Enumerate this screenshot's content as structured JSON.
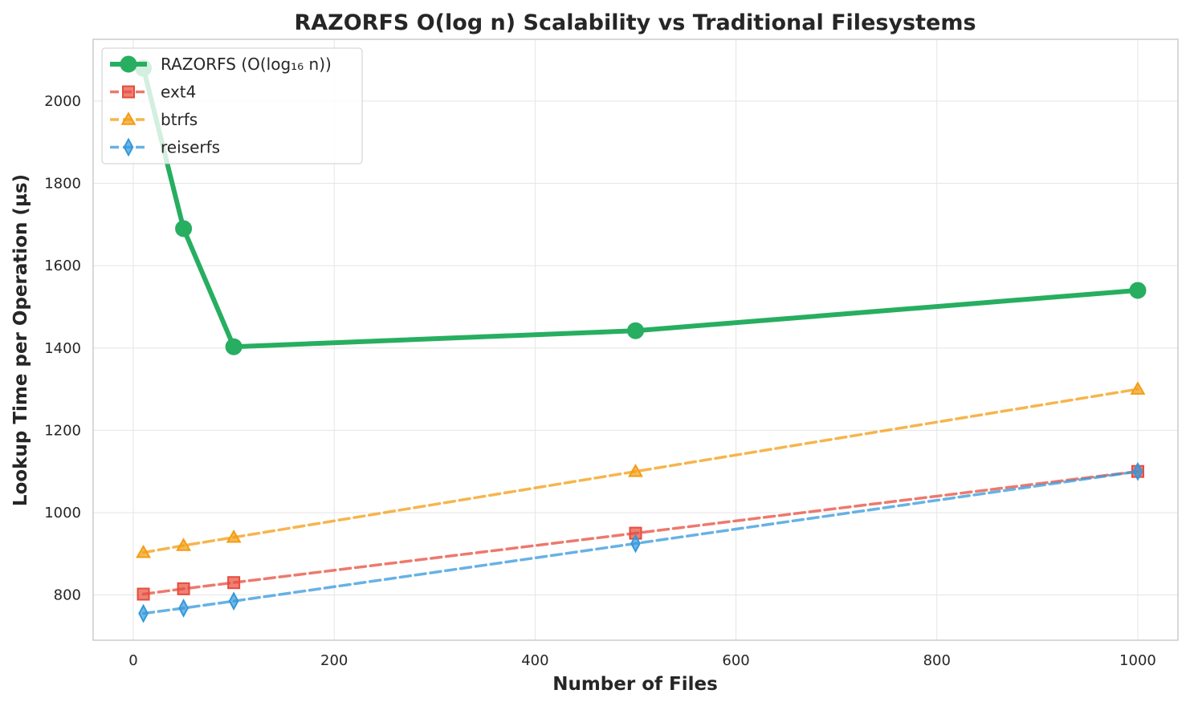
{
  "chart_data": {
    "type": "line",
    "title": "RAZORFS O(log n) Scalability vs Traditional Filesystems",
    "xlabel": "Number of Files",
    "ylabel": "Lookup Time per Operation (µs)",
    "xlim": [
      -40,
      1040
    ],
    "ylim": [
      690,
      2150
    ],
    "x_ticks": [
      0,
      200,
      400,
      600,
      800,
      1000
    ],
    "y_ticks": [
      800,
      1000,
      1200,
      1400,
      1600,
      1800,
      2000
    ],
    "grid": true,
    "legend_position": "top-left",
    "x": [
      10,
      50,
      100,
      500,
      1000
    ],
    "series": [
      {
        "name": "RAZORFS (O(log₁₆ n))",
        "values": [
          2080,
          1690,
          1403,
          1442,
          1540
        ],
        "color": "#27ae60",
        "marker": "circle",
        "dashed": false
      },
      {
        "name": "ext4",
        "values": [
          802,
          815,
          830,
          950,
          1100
        ],
        "color": "#e74c3c",
        "marker": "square",
        "dashed": true
      },
      {
        "name": "btrfs",
        "values": [
          903,
          920,
          940,
          1100,
          1300
        ],
        "color": "#f39c12",
        "marker": "triangle",
        "dashed": true
      },
      {
        "name": "reiserfs",
        "values": [
          755,
          768,
          785,
          925,
          1100
        ],
        "color": "#3498db",
        "marker": "diamond",
        "dashed": true
      }
    ]
  }
}
